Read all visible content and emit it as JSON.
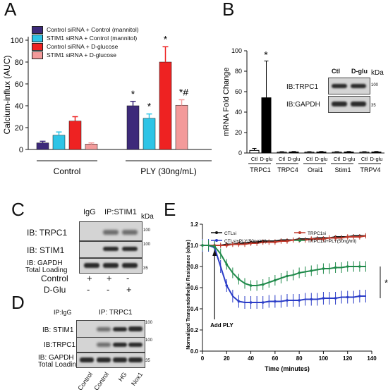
{
  "panelA": {
    "letter": "A",
    "ylabel": "Calcium-influx (AUC)",
    "yticks": [
      "0",
      "20",
      "40",
      "60",
      "80",
      "100"
    ],
    "legend": [
      {
        "label": "Control siRNA + Control (mannitol)",
        "color": "#3d2a7a"
      },
      {
        "label": "STIM1 siRNA  + Control (mannitol)",
        "color": "#2ec4e6"
      },
      {
        "label": "Control siRNA + D-glucose",
        "color": "#ee2222"
      },
      {
        "label": "STIM1 siRNA  + D-glucose",
        "color": "#f39a9a"
      }
    ],
    "groups": [
      "Control",
      "PLY (30ng/mL)"
    ],
    "annotations": [
      "*",
      "*",
      "*",
      "*#"
    ]
  },
  "chart_data": [
    {
      "type": "bar",
      "categories": [
        "Control",
        "PLY (30ng/mL)"
      ],
      "series": [
        {
          "name": "Control siRNA + Control (mannitol)",
          "values": [
            6,
            40
          ],
          "errors": [
            1.5,
            4
          ]
        },
        {
          "name": "STIM1 siRNA  + Control (mannitol)",
          "values": [
            13,
            28.5
          ],
          "errors": [
            3,
            4
          ]
        },
        {
          "name": "Control siRNA + D-glucose",
          "values": [
            26,
            80
          ],
          "errors": [
            4,
            14
          ]
        },
        {
          "name": "STIM1 siRNA  + D-glucose",
          "values": [
            5,
            40.5
          ],
          "errors": [
            1,
            5
          ]
        }
      ],
      "ylabel": "Calcium-influx (AUC)",
      "ylim": [
        0,
        100
      ]
    },
    {
      "type": "bar",
      "categories": [
        "TRPC1",
        "TRPC4",
        "Orai1",
        "Stim1",
        "TRPV4"
      ],
      "series": [
        {
          "name": "Ctl",
          "values": [
            2.5,
            0.8,
            0.8,
            0.8,
            0.8
          ],
          "errors": [
            2,
            0.5,
            0.5,
            0.5,
            0.5
          ]
        },
        {
          "name": "D-glu",
          "values": [
            54,
            1,
            1,
            1,
            1
          ],
          "errors": [
            36,
            0.5,
            0.5,
            0.5,
            0.5
          ]
        }
      ],
      "ylabel": "mRNA Fold Change",
      "ylim": [
        0,
        100
      ]
    },
    {
      "type": "line",
      "xlabel": "Time (minutes)",
      "ylabel": "Normalized Transendothelial Resistance (ohm)",
      "xlim": [
        0,
        140
      ],
      "ylim": [
        0,
        1.2
      ],
      "x": [
        0,
        5,
        10,
        15,
        20,
        25,
        30,
        35,
        40,
        45,
        50,
        55,
        60,
        65,
        70,
        75,
        80,
        85,
        90,
        95,
        100,
        105,
        110,
        115,
        120,
        125,
        130,
        135
      ],
      "series": [
        {
          "name": "CTLsi",
          "values": [
            1.0,
            1.0,
            1.0,
            1.0,
            1.01,
            1.01,
            1.02,
            1.02,
            1.03,
            1.03,
            1.04,
            1.04,
            1.04,
            1.05,
            1.05,
            1.05,
            1.06,
            1.06,
            1.06,
            1.07,
            1.07,
            1.07,
            1.08,
            1.08,
            1.08,
            1.09,
            1.09,
            1.09
          ]
        },
        {
          "name": "CTLsi+PLY(50ng/ml)",
          "values": [
            1.0,
            1.0,
            0.98,
            0.8,
            0.62,
            0.52,
            0.47,
            0.46,
            0.46,
            0.46,
            0.46,
            0.47,
            0.47,
            0.47,
            0.48,
            0.48,
            0.48,
            0.49,
            0.49,
            0.49,
            0.5,
            0.5,
            0.5,
            0.51,
            0.51,
            0.51,
            0.52,
            0.52
          ]
        },
        {
          "name": "TRPC1si",
          "values": [
            1.0,
            1.0,
            1.0,
            1.0,
            1.0,
            1.01,
            1.01,
            1.01,
            1.02,
            1.02,
            1.03,
            1.03,
            1.03,
            1.04,
            1.04,
            1.05,
            1.05,
            1.05,
            1.06,
            1.06,
            1.06,
            1.07,
            1.07,
            1.07,
            1.08,
            1.08,
            1.08,
            1.09
          ]
        },
        {
          "name": "TRPC1si+PLY(50ng/ml)",
          "values": [
            1.0,
            1.0,
            0.99,
            0.92,
            0.82,
            0.74,
            0.68,
            0.64,
            0.62,
            0.62,
            0.63,
            0.65,
            0.67,
            0.69,
            0.71,
            0.72,
            0.74,
            0.75,
            0.76,
            0.77,
            0.78,
            0.78,
            0.79,
            0.79,
            0.8,
            0.8,
            0.8,
            0.8
          ]
        }
      ]
    }
  ],
  "panelB": {
    "letter": "B",
    "ylabel": "mRNA Fold Change",
    "yticks": [
      "0",
      "20",
      "40",
      "60",
      "80",
      "100"
    ],
    "bar_labels": [
      "Ctl",
      "D-glu"
    ],
    "genes": [
      "TRPC1",
      "TRPC4",
      "Orai1",
      "Stim1",
      "TRPV4"
    ],
    "star": "*",
    "inset": {
      "col1": "Ctl",
      "col2": "D-glu",
      "kda": "kDa",
      "row1": "IB:TRPC1",
      "row2": "IB:GAPDH",
      "m1": "100",
      "m2": "35"
    }
  },
  "panelC": {
    "letter": "C",
    "igg": "IgG",
    "ip": "IP:STIM1",
    "kda": "kDa",
    "rows": [
      "IB: TRPC1",
      "IB: STIM1",
      "IB: GAPDH",
      "Total Loading"
    ],
    "markers": [
      "100",
      "100",
      "35"
    ],
    "control_label": "Control",
    "dglu_label": "D-Glu",
    "control_signs": [
      "+",
      "+",
      "-"
    ],
    "dglu_signs": [
      "-",
      "-",
      "+"
    ]
  },
  "panelD": {
    "letter": "D",
    "ipigg": "IP:IgG",
    "ip": "IP: TRPC1",
    "rows": [
      "IB: STIM1",
      "IB:TRPC1",
      "IB: GAPDH",
      "Total Loading"
    ],
    "markers": [
      "100",
      "100",
      "35"
    ],
    "lanes": [
      "Control",
      "Control",
      "HG",
      "Nox1"
    ]
  },
  "panelE": {
    "letter": "E",
    "ylabel": "Normalized Transendothelial Resistance (ohm)",
    "xlabel": "Time (minutes)",
    "yticks": [
      "0.0",
      "0.2",
      "0.4",
      "0.6",
      "0.8",
      "1.0",
      "1.2"
    ],
    "xticks": [
      "0",
      "20",
      "40",
      "60",
      "80",
      "100",
      "120",
      "140"
    ],
    "arrow_label": "Add PLY",
    "star": "*",
    "colors": {
      "ctl": "#111111",
      "ctlply": "#2a3cc7",
      "trpc": "#c0392b",
      "trpcply": "#1f8a4a"
    }
  }
}
